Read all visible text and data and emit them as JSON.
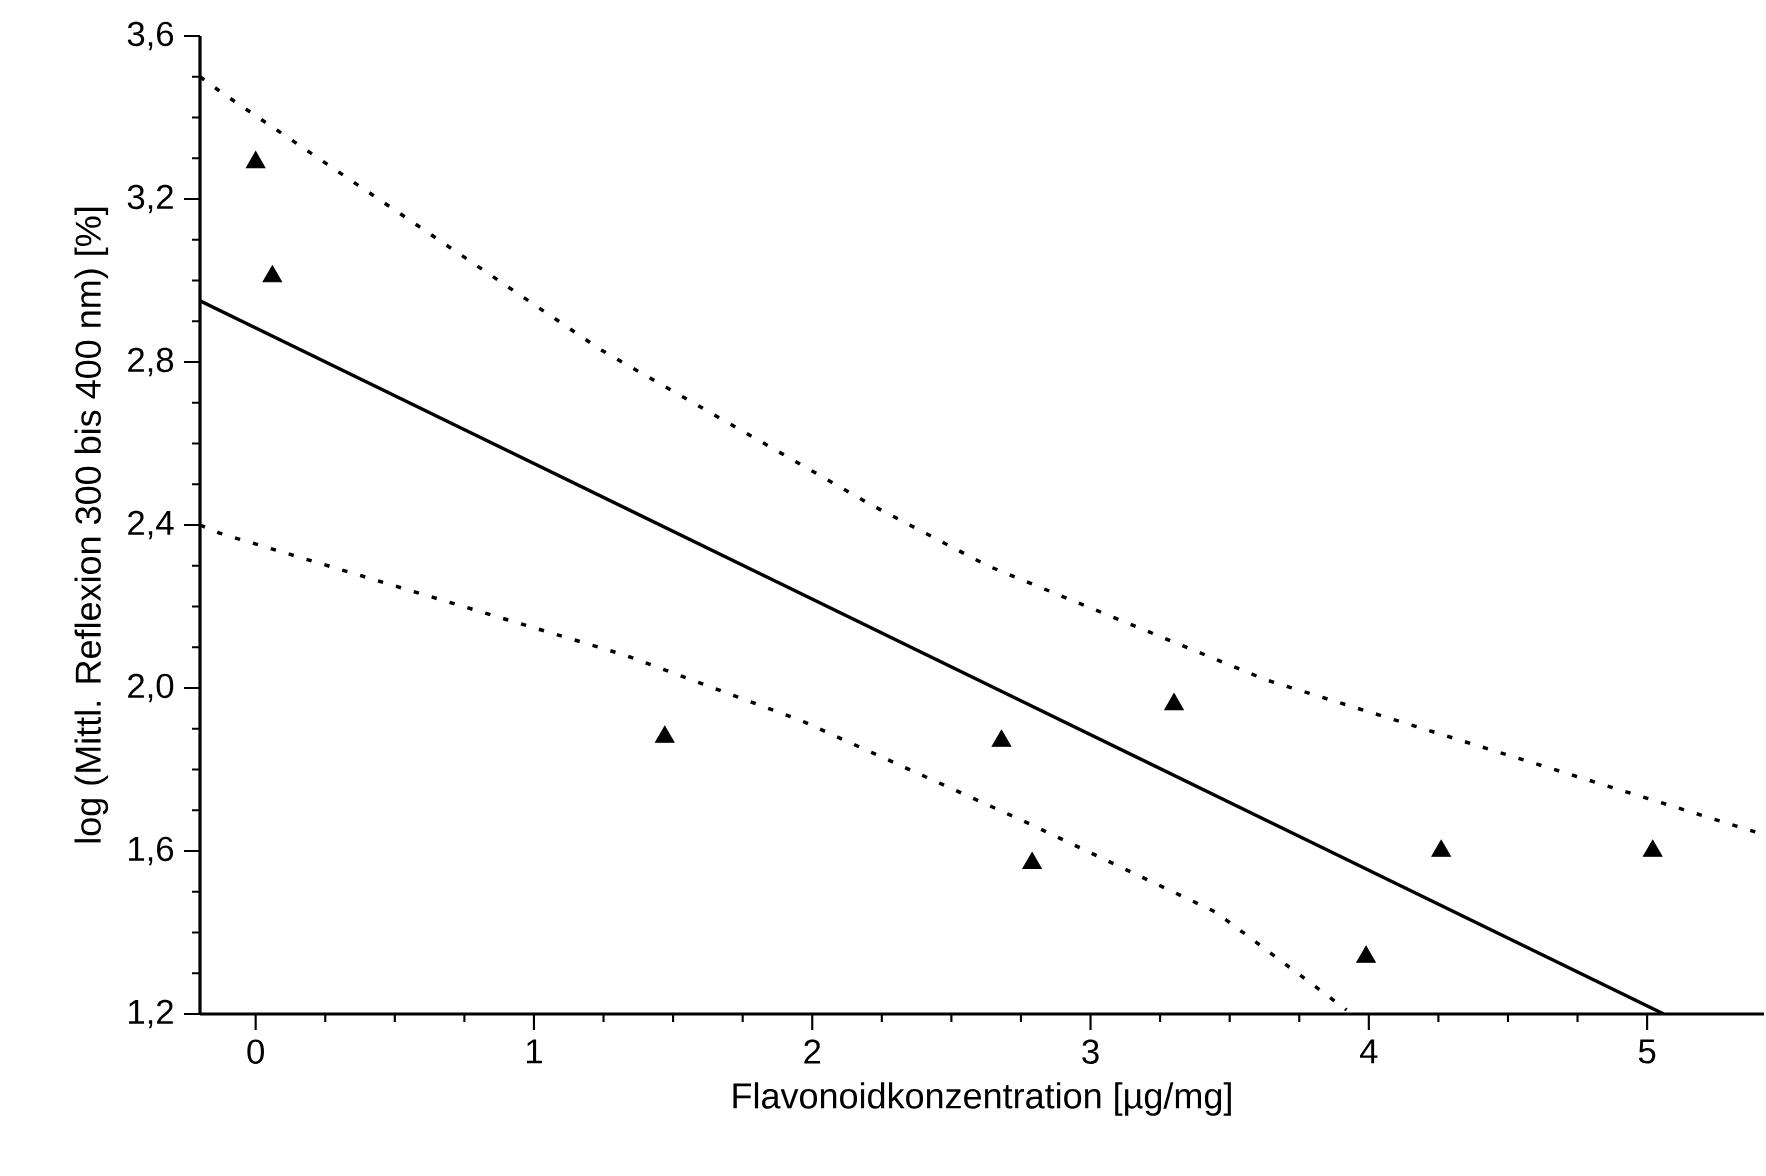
{
  "chart_data": {
    "type": "scatter",
    "xlabel": "Flavonoidkonzentration [µg/mg]",
    "ylabel": "log (Mittl. Reflexion 300 bis 400 nm) [%]",
    "xlim": [
      -0.2,
      5.42
    ],
    "ylim": [
      1.2,
      3.6
    ],
    "xticks": [
      0,
      1,
      2,
      3,
      4,
      5
    ],
    "yticks": [
      {
        "value": 1.2,
        "label": "1,2"
      },
      {
        "value": 1.6,
        "label": "1,6"
      },
      {
        "value": 2.0,
        "label": "2,0"
      },
      {
        "value": 2.4,
        "label": "2,4"
      },
      {
        "value": 2.8,
        "label": "2,8"
      },
      {
        "value": 3.2,
        "label": "3,2"
      },
      {
        "value": 3.6,
        "label": "3,6"
      }
    ],
    "grid": false,
    "series": [
      {
        "marker": "triangle",
        "color": "#000000",
        "x": [
          0,
          0.06,
          1.47,
          2.68,
          2.79,
          3.3,
          3.99,
          4.26,
          5.02
        ],
        "values": [
          3.29,
          3.01,
          1.88,
          1.87,
          1.57,
          1.96,
          1.34,
          1.6,
          1.6
        ]
      },
      {
        "type": "line",
        "marker": "none",
        "line_style": "solid",
        "color": "#000000",
        "x": [
          -0.2,
          5.06
        ],
        "values": [
          2.95,
          1.2
        ]
      },
      {
        "type": "line",
        "marker": "none",
        "line_style": "dotted",
        "color": "#000000",
        "x": [
          -0.2,
          -0.12,
          1.24,
          2.21,
          2.63,
          3.63,
          5.42
        ],
        "values": [
          3.5,
          3.46,
          2.83,
          2.45,
          2.3,
          2.02,
          1.64
        ]
      },
      {
        "type": "line",
        "marker": "none",
        "line_style": "dotted",
        "color": "#000000",
        "x": [
          -0.2,
          -0.13,
          1.33,
          1.96,
          2.77,
          3.45,
          3.92
        ],
        "values": [
          2.4,
          2.38,
          2.08,
          1.92,
          1.67,
          1.45,
          1.21
        ]
      }
    ]
  }
}
